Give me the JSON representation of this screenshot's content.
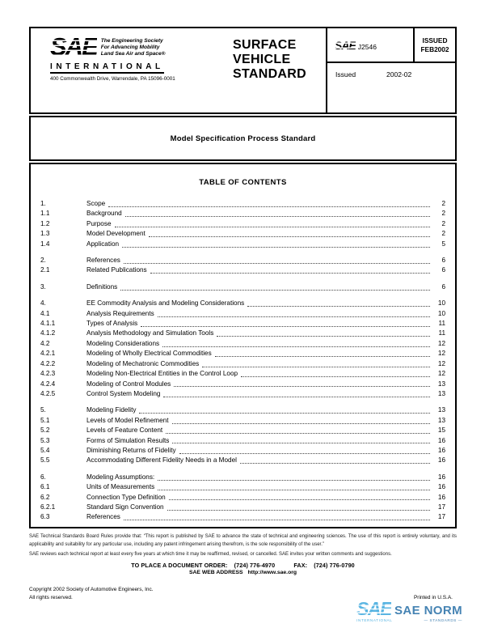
{
  "header": {
    "logo": {
      "brand": "SAE",
      "tagline_line1": "The Engineering Society",
      "tagline_line2": "For Advancing Mobility",
      "tagline_line3": "Land Sea Air and Space®",
      "international": "INTERNATIONAL",
      "address": "400 Commonwealth Drive, Warrendale, PA 15096-0001"
    },
    "doc_type_line1": "SURFACE",
    "doc_type_line2": "VEHICLE",
    "doc_type_line3": "STANDARD",
    "doc_brand": "SAE",
    "doc_number": "J2546",
    "issued_box_line1": "ISSUED",
    "issued_box_line2": "FEB2002",
    "revision_label": "Issued",
    "revision_value": "2002-02"
  },
  "title_bar": {
    "title": "Model Specification Process Standard"
  },
  "toc": {
    "heading": "TABLE OF CONTENTS",
    "entries": [
      {
        "num": "1.",
        "title": "Scope",
        "page": "2",
        "gap": false
      },
      {
        "num": "1.1",
        "title": "Background",
        "page": "2",
        "gap": false
      },
      {
        "num": "1.2",
        "title": "Purpose",
        "page": "2",
        "gap": false
      },
      {
        "num": "1.3",
        "title": "Model Development",
        "page": "2",
        "gap": false
      },
      {
        "num": "1.4",
        "title": "Application",
        "page": "5",
        "gap": false
      },
      {
        "num": "2.",
        "title": "References",
        "page": "6",
        "gap": true
      },
      {
        "num": "2.1",
        "title": "Related Publications",
        "page": "6",
        "gap": false
      },
      {
        "num": "3.",
        "title": "Definitions",
        "page": "6",
        "gap": true
      },
      {
        "num": "4.",
        "title": "EE Commodity Analysis and Modeling Considerations",
        "page": "10",
        "gap": true
      },
      {
        "num": "4.1",
        "title": "Analysis Requirements",
        "page": "10",
        "gap": false
      },
      {
        "num": "4.1.1",
        "title": "Types of  Analysis",
        "page": "11",
        "gap": false
      },
      {
        "num": "4.1.2",
        "title": "Analysis Methodology and Simulation Tools",
        "page": "11",
        "gap": false
      },
      {
        "num": "4.2",
        "title": "Modeling Considerations",
        "page": "12",
        "gap": false
      },
      {
        "num": "4.2.1",
        "title": "Modeling of Wholly Electrical Commodities",
        "page": "12",
        "gap": false
      },
      {
        "num": "4.2.2",
        "title": "Modeling of Mechatronic Commodities",
        "page": "12",
        "gap": false
      },
      {
        "num": "4.2.3",
        "title": "Modeling Non-Electrical Entities in the Control Loop",
        "page": "12",
        "gap": false
      },
      {
        "num": "4.2.4",
        "title": "Modeling of Control Modules",
        "page": "13",
        "gap": false
      },
      {
        "num": "4.2.5",
        "title": "Control System Modeling",
        "page": "13",
        "gap": false
      },
      {
        "num": "5.",
        "title": "Modeling Fidelity",
        "page": "13",
        "gap": true
      },
      {
        "num": "5.1",
        "title": "Levels of Model Refinement",
        "page": "13",
        "gap": false
      },
      {
        "num": "5.2",
        "title": "Levels of Feature Content",
        "page": "15",
        "gap": false
      },
      {
        "num": "5.3",
        "title": "Forms of Simulation Results",
        "page": "16",
        "gap": false
      },
      {
        "num": "5.4",
        "title": "Diminishing Returns of Fidelity",
        "page": "16",
        "gap": false
      },
      {
        "num": "5.5",
        "title": "Accommodating Different Fidelity Needs in a Model",
        "page": "16",
        "gap": false
      },
      {
        "num": "6.",
        "title": "Modeling Assumptions:",
        "page": "16",
        "gap": true
      },
      {
        "num": "6.1",
        "title": "Units of Measurements",
        "page": "16",
        "gap": false
      },
      {
        "num": "6.2",
        "title": "Connection Type Definition",
        "page": "16",
        "gap": false
      },
      {
        "num": "6.2.1",
        "title": "Standard Sign Convention",
        "page": "17",
        "gap": false
      },
      {
        "num": "6.3",
        "title": "References",
        "page": "17",
        "gap": false
      }
    ]
  },
  "footer": {
    "disclaimer": "SAE Technical Standards Board Rules provide that: “This report is published by SAE to advance the state of technical and engineering sciences. The use of this report is entirely voluntary, and its applicability and suitability for any particular use, including any patent infringement arising therefrom, is the sole responsibility of the user.”",
    "reviews": "SAE reviews each technical report at least every five years at which time it may be reaffirmed, revised, or cancelled. SAE invites your written comments and suggestions.",
    "order_label": "TO PLACE A DOCUMENT ORDER:",
    "order_phone": "(724) 776-4970",
    "fax_label": "FAX:",
    "fax_phone": "(724) 776-0790",
    "web_label": "SAE WEB ADDRESS",
    "web_url": "http://www.sae.org",
    "copyright_line1": "Copyright 2002 Society of Automotive Engineers, Inc.",
    "copyright_line2": "All rights reserved.",
    "printed": "Printed in U.S.A.",
    "norm_logo": {
      "brand": "SAE",
      "name": "SAE NORM",
      "sub_left": "INTERNATIONAL",
      "sub_right": "— STANDARDS —"
    }
  },
  "colors": {
    "ink": "#000000",
    "norm_light_blue": "#5ab5e2",
    "norm_steel_blue": "#4583b3"
  }
}
